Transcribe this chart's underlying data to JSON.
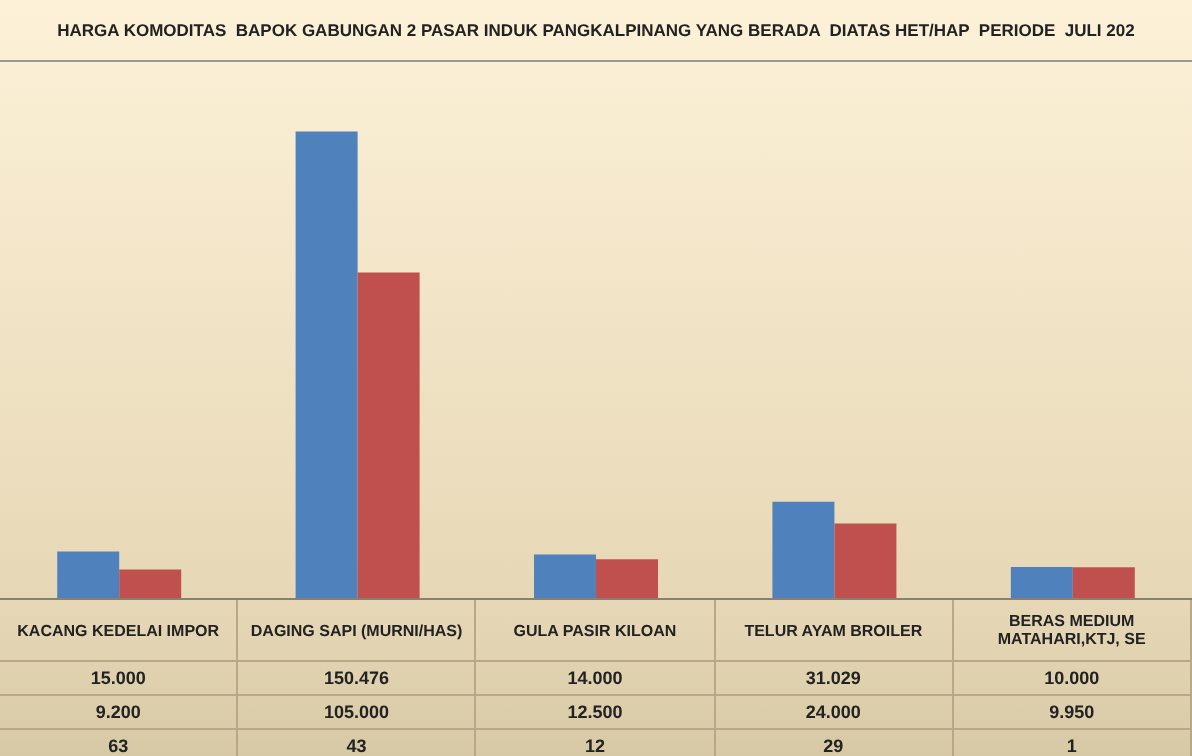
{
  "chart_data": {
    "type": "bar",
    "title": "HARGA KOMODITAS  BAPOK GABUNGAN 2 PASAR INDUK PANGKALPINANG YANG BERADA  DIATAS HET/HAP  PERIODE  JULI 202",
    "categories": [
      "KACANG KEDELAI IMPOR",
      "DAGING SAPI (MURNI/HAS)",
      "GULA PASIR KILOAN",
      "TELUR AYAM BROILER",
      "BERAS MEDIUM MATAHARI,KTJ, SE"
    ],
    "series": [
      {
        "color": "#4f81bd",
        "values": [
          15000,
          150476,
          14000,
          31029,
          10000
        ],
        "value_labels": [
          "15.000",
          "150.476",
          "14.000",
          "31.029",
          "10.000"
        ]
      },
      {
        "color": "#c0504d",
        "values": [
          9200,
          105000,
          12500,
          24000,
          9950
        ],
        "value_labels": [
          "9.200",
          "105.000",
          "12.500",
          "24.000",
          "9.950"
        ]
      }
    ],
    "tick_labels": "x",
    "annotations": [
      "63",
      "43",
      "12",
      "29",
      "1"
    ]
  }
}
